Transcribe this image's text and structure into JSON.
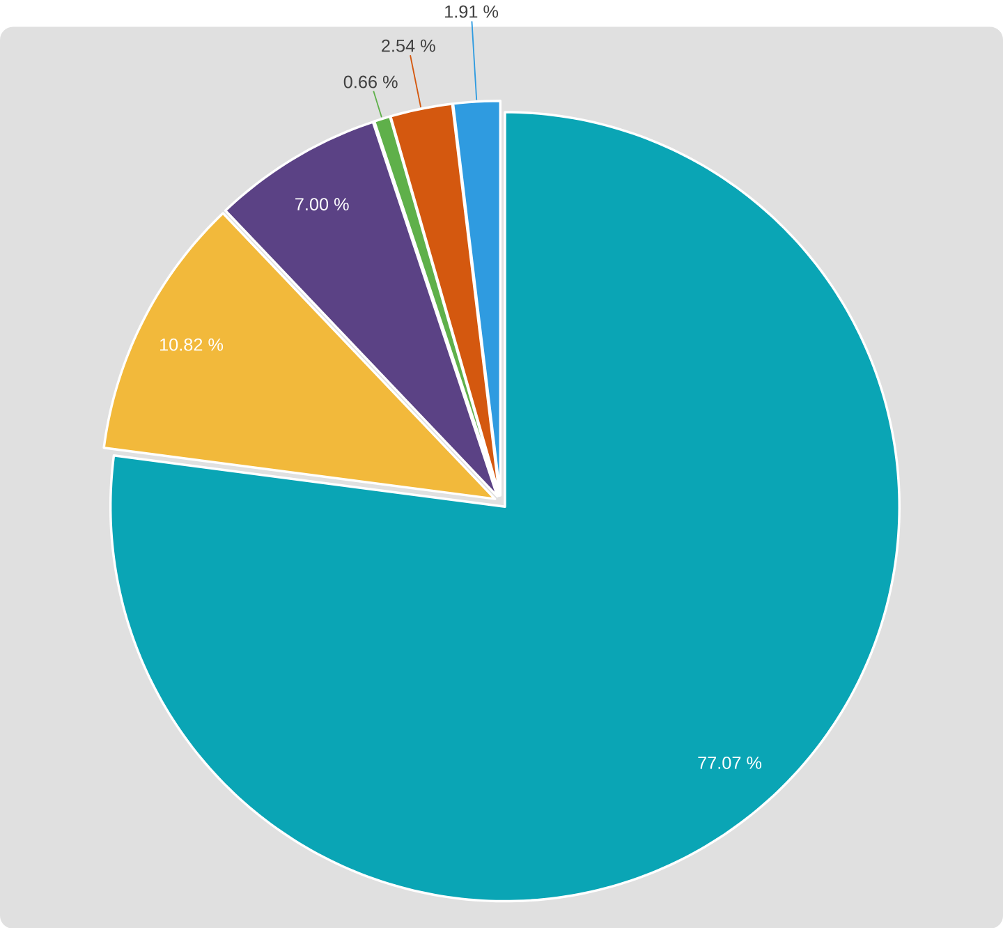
{
  "chart_data": {
    "type": "pie",
    "categories": [
      null,
      null,
      null,
      null,
      null,
      null
    ],
    "values": [
      77.07,
      10.82,
      7.0,
      0.66,
      2.54,
      1.91
    ],
    "colors": [
      "#0aa5b5",
      "#f2b93b",
      "#5b4285",
      "#5fb04a",
      "#d4580f",
      "#2f9be0"
    ],
    "value_labels": [
      "77.07 %",
      "10.82 %",
      "7.00 %",
      "0.66 %",
      "2.54 %",
      "1.91 %"
    ]
  }
}
